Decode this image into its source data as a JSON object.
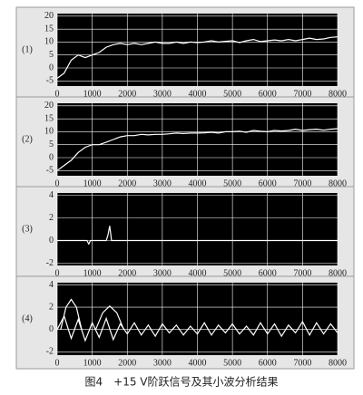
{
  "chart_data": [
    {
      "type": "line",
      "label": "(1)",
      "background": "#000000",
      "grid": true,
      "xlim": [
        0,
        8000
      ],
      "ylim": [
        -7,
        21
      ],
      "xticks": [
        0,
        1000,
        2000,
        3000,
        4000,
        5000,
        6000,
        7000,
        8000
      ],
      "yticks": [
        20,
        15,
        10,
        5,
        0,
        -5
      ],
      "series": [
        {
          "color": "#ffffff",
          "x": [
            0,
            200,
            400,
            600,
            800,
            1000,
            1200,
            1400,
            1600,
            1800,
            2000,
            2200,
            2400,
            2600,
            2800,
            3000,
            3200,
            3400,
            3600,
            3800,
            4000,
            4200,
            4400,
            4600,
            4800,
            5000,
            5200,
            5400,
            5600,
            5800,
            6000,
            6200,
            6400,
            6600,
            6800,
            7000,
            7200,
            7400,
            7600,
            7800,
            8000
          ],
          "values": [
            -4,
            -2,
            3,
            5,
            4,
            5,
            6,
            8,
            9,
            9.5,
            9,
            9.5,
            9,
            9.5,
            10,
            9.5,
            9.5,
            10,
            9.5,
            10,
            9.8,
            10,
            10.5,
            10,
            10.3,
            10.5,
            9.8,
            10.5,
            11,
            10.2,
            10.5,
            10.8,
            10.5,
            11,
            10.5,
            11,
            11.5,
            11,
            11.2,
            11.8,
            12
          ]
        }
      ]
    },
    {
      "type": "line",
      "label": "(2)",
      "background": "#000000",
      "grid": true,
      "xlim": [
        0,
        8000
      ],
      "ylim": [
        -7,
        21
      ],
      "xticks": [
        0,
        1000,
        2000,
        3000,
        4000,
        5000,
        6000,
        7000,
        8000
      ],
      "yticks": [
        20,
        15,
        10,
        5,
        0,
        -5
      ],
      "series": [
        {
          "color": "#ffffff",
          "x": [
            0,
            200,
            400,
            600,
            800,
            1000,
            1200,
            1400,
            1600,
            1800,
            2000,
            2200,
            2400,
            2600,
            2800,
            3000,
            3200,
            3400,
            3600,
            3800,
            4000,
            4200,
            4400,
            4600,
            4800,
            5000,
            5200,
            5400,
            5600,
            5800,
            6000,
            6200,
            6400,
            6600,
            6800,
            7000,
            7200,
            7400,
            7600,
            7800,
            8000
          ],
          "values": [
            -5,
            -3,
            -1,
            2,
            4,
            5,
            5,
            6,
            7,
            8,
            8.5,
            8.5,
            9,
            8.8,
            9,
            9,
            9.2,
            9.5,
            9.3,
            9.5,
            9.5,
            9.6,
            9.8,
            9.5,
            10,
            10,
            10.2,
            9.8,
            10.5,
            10.2,
            10,
            10.5,
            10.3,
            10.5,
            11,
            10.5,
            10.8,
            11,
            10.6,
            11,
            11.2
          ]
        }
      ]
    },
    {
      "type": "line",
      "label": "(3)",
      "background": "#000000",
      "grid": true,
      "xlim": [
        0,
        8000
      ],
      "ylim": [
        -2.2,
        4.2
      ],
      "xticks": [
        0,
        1000,
        2000,
        3000,
        4000,
        5000,
        6000,
        7000,
        8000
      ],
      "yticks": [
        4,
        2,
        0,
        -2
      ],
      "series": [
        {
          "color": "#ffffff",
          "x": [
            0,
            850,
            900,
            950,
            1400,
            1450,
            1500,
            1550,
            1600,
            8000
          ],
          "values": [
            0,
            0,
            -0.3,
            0,
            0,
            0.5,
            1.3,
            0,
            0,
            0
          ]
        }
      ]
    },
    {
      "type": "line",
      "label": "(4)",
      "background": "#000000",
      "grid": true,
      "xlim": [
        0,
        8000
      ],
      "ylim": [
        -2.3,
        4.2
      ],
      "xticks": [
        0,
        1000,
        2000,
        3000,
        4000,
        5000,
        6000,
        7000,
        8000
      ],
      "yticks": [
        4,
        2,
        0,
        -2
      ],
      "series": [
        {
          "color": "#ffffff",
          "x": [
            0,
            200,
            400,
            600,
            800,
            1000,
            1200,
            1400,
            1600,
            1800,
            2000,
            2200,
            2400,
            2600,
            2800,
            3000,
            3200,
            3400,
            3600,
            3800,
            4000,
            4200,
            4400,
            4600,
            4800,
            5000,
            5200,
            5400,
            5600,
            5800,
            6000,
            6200,
            6400,
            6600,
            6800,
            7000,
            7200,
            7400,
            7600,
            7800,
            8000
          ],
          "values": [
            0,
            1.2,
            -0.8,
            0.9,
            -1,
            0.6,
            -0.7,
            1,
            -0.9,
            0.5,
            -0.4,
            0.6,
            -0.5,
            0.4,
            -0.6,
            0.5,
            -0.3,
            0.4,
            -0.5,
            0.3,
            -0.4,
            0.6,
            -0.5,
            0.4,
            -0.3,
            0.5,
            -0.4,
            0.3,
            -0.5,
            0.6,
            -0.4,
            0.5,
            -0.6,
            0.4,
            -0.3,
            0.7,
            -0.5,
            0.6,
            -0.4,
            0.5,
            -0.3
          ]
        },
        {
          "color": "#ffffff",
          "x": [
            100,
            250,
            400,
            550,
            700
          ],
          "values": [
            0,
            2,
            2.7,
            2,
            0
          ]
        },
        {
          "color": "#ffffff",
          "x": [
            1100,
            1300,
            1500,
            1700,
            1900
          ],
          "values": [
            0,
            1.5,
            2.1,
            1.5,
            0
          ]
        }
      ]
    }
  ],
  "caption": "图4　+15 V阶跃信号及其小波分析结果"
}
